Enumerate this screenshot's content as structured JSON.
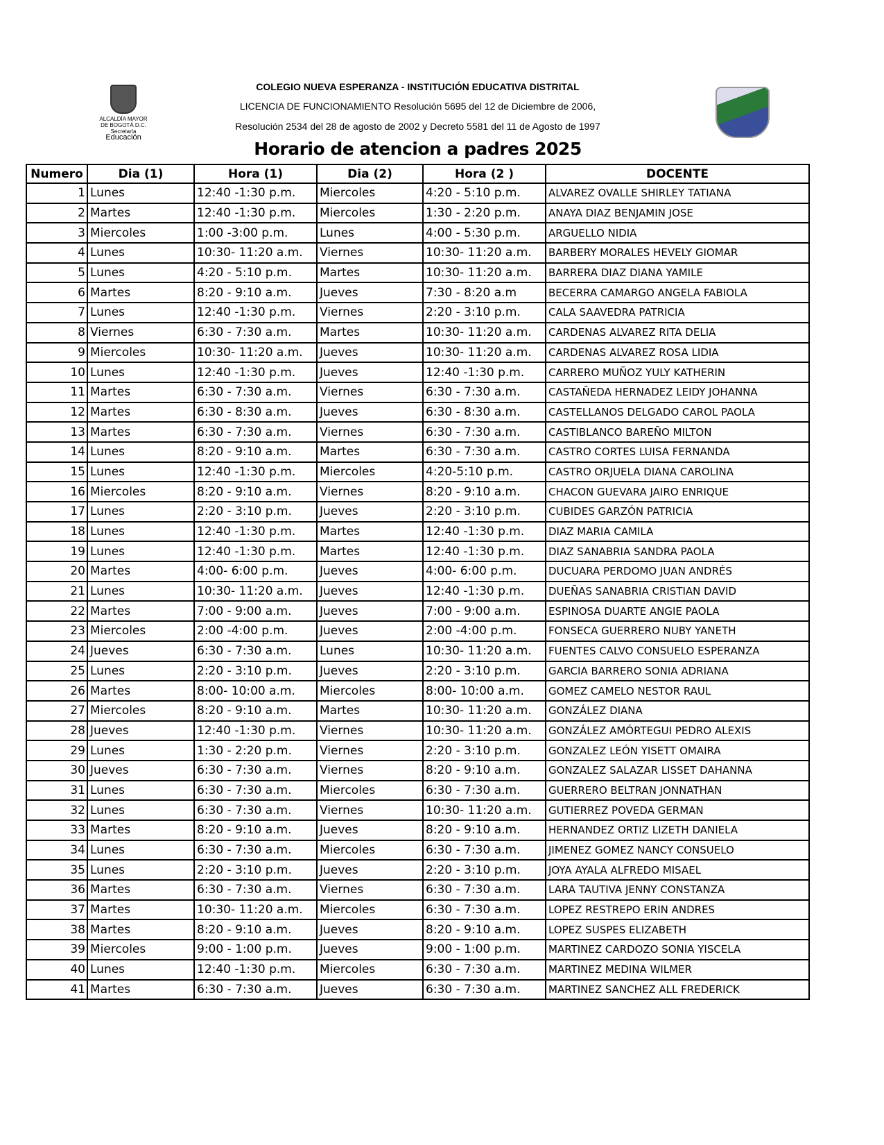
{
  "header": {
    "school": "COLEGIO NUEVA ESPERANZA - INSTITUCIÓN EDUCATIVA DISTRITAL",
    "license": "LICENCIA DE FUNCIONAMIENTO Resolución 5695 del 12 de Diciembre de 2006,",
    "resolution": "Resolución 2534 del 28 de agosto de 2002 y Decreto 5581 del 11 de Agosto de 1997",
    "title": "Horario de atencion a padres 2025",
    "logo_left": {
      "line1": "ALCALDÍA MAYOR",
      "line2": "DE BOGOTÁ D.C.",
      "line3": "Secretaría",
      "line4": "Educación"
    }
  },
  "table": {
    "columns": [
      "Numero",
      "Dia (1)",
      "Hora (1)",
      "Dia (2)",
      "Hora (2 )",
      "DOCENTE"
    ],
    "rows": [
      [
        "1",
        "Lunes",
        "12:40 -1:30 p.m.",
        "Miercoles",
        "4:20 - 5:10 p.m.",
        "ALVAREZ OVALLE SHIRLEY TATIANA"
      ],
      [
        "2",
        "Martes",
        "12:40 -1:30 p.m.",
        "Miercoles",
        "1:30 - 2:20 p.m.",
        "ANAYA DIAZ BENJAMIN JOSE"
      ],
      [
        "3",
        "Miercoles",
        "1:00 -3:00 p.m.",
        "Lunes",
        "4:00 - 5:30 p.m.",
        "ARGUELLO  NIDIA"
      ],
      [
        "4",
        "Lunes",
        "10:30- 11:20 a.m.",
        "Viernes",
        "10:30- 11:20 a.m.",
        "BARBERY MORALES HEVELY GIOMAR"
      ],
      [
        "5",
        "Lunes",
        "4:20 - 5:10 p.m.",
        "Martes",
        "10:30- 11:20 a.m.",
        "BARRERA DIAZ DIANA YAMILE"
      ],
      [
        "6",
        "Martes",
        "8:20 - 9:10 a.m.",
        "Jueves",
        "7:30 - 8:20 a.m",
        "BECERRA CAMARGO ANGELA FABIOLA"
      ],
      [
        "7",
        "Lunes",
        "12:40 -1:30 p.m.",
        "Viernes",
        "2:20 - 3:10 p.m.",
        "CALA SAAVEDRA PATRICIA"
      ],
      [
        "8",
        "Viernes",
        "6:30 - 7:30 a.m.",
        "Martes",
        "10:30- 11:20 a.m.",
        "CARDENAS ALVAREZ RITA DELIA"
      ],
      [
        "9",
        "Miercoles",
        "10:30- 11:20 a.m.",
        "Jueves",
        "10:30- 11:20 a.m.",
        "CARDENAS ALVAREZ ROSA LIDIA"
      ],
      [
        "10",
        "Lunes",
        "12:40 -1:30 p.m.",
        "Jueves",
        "12:40 -1:30 p.m.",
        "CARRERO MUÑOZ YULY KATHERIN"
      ],
      [
        "11",
        "Martes",
        "6:30 - 7:30 a.m.",
        "Viernes",
        "6:30 - 7:30 a.m.",
        "CASTAÑEDA HERNADEZ LEIDY JOHANNA"
      ],
      [
        "12",
        "Martes",
        "6:30 - 8:30 a.m.",
        "Jueves",
        "6:30 - 8:30 a.m.",
        "CASTELLANOS DELGADO CAROL PAOLA"
      ],
      [
        "13",
        "Martes",
        "6:30 - 7:30 a.m.",
        "Viernes",
        "6:30 - 7:30 a.m.",
        "CASTIBLANCO BAREÑO MILTON"
      ],
      [
        "14",
        "Lunes",
        "8:20 - 9:10 a.m.",
        "Martes",
        "6:30 - 7:30 a.m.",
        "CASTRO CORTES LUISA FERNANDA"
      ],
      [
        "15",
        "Lunes",
        "12:40 -1:30 p.m.",
        "Miercoles",
        "4:20-5:10  p.m.",
        "CASTRO ORJUELA DIANA CAROLINA"
      ],
      [
        "16",
        "Miercoles",
        "8:20 - 9:10 a.m.",
        "Viernes",
        "8:20 - 9:10 a.m.",
        "CHACON GUEVARA JAIRO ENRIQUE"
      ],
      [
        "17",
        "Lunes",
        "2:20 - 3:10 p.m.",
        "Jueves",
        "2:20 - 3:10 p.m.",
        "CUBIDES GARZÓN PATRICIA"
      ],
      [
        "18",
        "Lunes",
        "12:40 -1:30 p.m.",
        "Martes",
        "12:40 -1:30 p.m.",
        "DIAZ MARIA CAMILA"
      ],
      [
        "19",
        "Lunes",
        "12:40 -1:30 p.m.",
        "Martes",
        "12:40 -1:30 p.m.",
        "DIAZ SANABRIA SANDRA PAOLA"
      ],
      [
        "20",
        "Martes",
        "4:00- 6:00 p.m.",
        "Jueves",
        "4:00- 6:00 p.m.",
        "DUCUARA PERDOMO JUAN ANDRÉS"
      ],
      [
        "21",
        "Lunes",
        "10:30- 11:20 a.m.",
        "Jueves",
        "12:40 -1:30 p.m.",
        "DUEÑAS SANABRIA CRISTIAN DAVID"
      ],
      [
        "22",
        "Martes",
        "7:00 - 9:00 a.m.",
        "Jueves",
        "7:00 - 9:00 a.m.",
        "ESPINOSA DUARTE ANGIE PAOLA"
      ],
      [
        "23",
        "Miercoles",
        "2:00 -4:00 p.m.",
        "Jueves",
        "2:00 -4:00 p.m.",
        "FONSECA GUERRERO NUBY YANETH"
      ],
      [
        "24",
        "Jueves",
        "6:30 - 7:30 a.m.",
        "Lunes",
        "10:30- 11:20 a.m.",
        "FUENTES CALVO CONSUELO ESPERANZA"
      ],
      [
        "25",
        "Lunes",
        "2:20 - 3:10 p.m.",
        "Jueves",
        "2:20 - 3:10 p.m.",
        "GARCIA BARRERO SONIA ADRIANA"
      ],
      [
        "26",
        "Martes",
        "8:00- 10:00 a.m.",
        "Miercoles",
        "8:00- 10:00 a.m.",
        "GOMEZ CAMELO NESTOR RAUL"
      ],
      [
        "27",
        "Miercoles",
        "8:20 - 9:10 a.m.",
        "Martes",
        "10:30- 11:20 a.m.",
        "GONZÁLEZ  DIANA"
      ],
      [
        "28",
        "Jueves",
        "12:40 -1:30 p.m.",
        "Viernes",
        "10:30- 11:20 a.m.",
        "GONZÁLEZ AMÓRTEGUI PEDRO ALEXIS"
      ],
      [
        "29",
        "Lunes",
        "1:30 - 2:20 p.m.",
        "Viernes",
        "2:20 - 3:10 p.m.",
        "GONZALEZ LEÓN YISETT OMAIRA"
      ],
      [
        "30",
        "Jueves",
        "6:30 - 7:30 a.m.",
        "Viernes",
        "8:20 - 9:10 a.m.",
        "GONZALEZ SALAZAR LISSET DAHANNA"
      ],
      [
        "31",
        "Lunes",
        "6:30 - 7:30 a.m.",
        "Miercoles",
        "6:30 - 7:30 a.m.",
        "GUERRERO BELTRAN JONNATHAN"
      ],
      [
        "32",
        "Lunes",
        "6:30 - 7:30 a.m.",
        "Viernes",
        "10:30- 11:20 a.m.",
        "GUTIERREZ POVEDA GERMAN"
      ],
      [
        "33",
        "Martes",
        "8:20 - 9:10 a.m.",
        "Jueves",
        "8:20 - 9:10 a.m.",
        "HERNANDEZ ORTIZ LIZETH DANIELA"
      ],
      [
        "34",
        "Lunes",
        "6:30 - 7:30 a.m.",
        "Miercoles",
        "6:30 - 7:30 a.m.",
        "JIMENEZ GOMEZ NANCY CONSUELO"
      ],
      [
        "35",
        "Lunes",
        "2:20 - 3:10 p.m.",
        "Jueves",
        "2:20 - 3:10 p.m.",
        "JOYA AYALA ALFREDO MISAEL"
      ],
      [
        "36",
        "Martes",
        "6:30 - 7:30 a.m.",
        "Viernes",
        "6:30 - 7:30 a.m.",
        "LARA TAUTIVA JENNY CONSTANZA"
      ],
      [
        "37",
        "Martes",
        "10:30- 11:20 a.m.",
        "Miercoles",
        "6:30 - 7:30 a.m.",
        "LOPEZ RESTREPO ERIN ANDRES"
      ],
      [
        "38",
        "Martes",
        "8:20 - 9:10 a.m.",
        "Jueves",
        "8:20 - 9:10 a.m.",
        "LOPEZ SUSPES ELIZABETH"
      ],
      [
        "39",
        "Miercoles",
        "9:00 - 1:00 p.m.",
        "Jueves",
        "9:00 - 1:00 p.m.",
        "MARTINEZ CARDOZO SONIA YISCELA"
      ],
      [
        "40",
        "Lunes",
        "12:40 -1:30 p.m.",
        "Miercoles",
        "6:30 - 7:30 a.m.",
        "MARTINEZ MEDINA WILMER"
      ],
      [
        "41",
        "Martes",
        "6:30 - 7:30 a.m.",
        "Jueves",
        "6:30 - 7:30 a.m.",
        "MARTINEZ SANCHEZ ALL FREDERICK"
      ]
    ]
  }
}
